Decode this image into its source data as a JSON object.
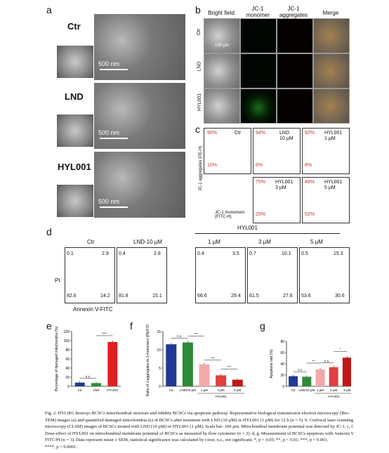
{
  "panel_labels": {
    "a": "a",
    "b": "b",
    "c": "c",
    "d": "d",
    "e": "e",
    "f": "f",
    "g": "g"
  },
  "panel_a": {
    "rows": [
      "Ctr",
      "LND",
      "HYL001"
    ],
    "scale": "500 nm"
  },
  "panel_b": {
    "headers": [
      "Bright field",
      "JC-1 monomer",
      "JC-1 aggregates",
      "Merge"
    ],
    "rows": [
      "Ctr",
      "LND",
      "HYL001"
    ],
    "scale": "100 µm"
  },
  "panel_c": {
    "plots": [
      {
        "label": "Ctr",
        "upper": "90%",
        "lower": "10%"
      },
      {
        "label": "LND\n10 µM",
        "upper": "94%",
        "lower": "6%"
      },
      {
        "label": "HYL001\n1 µM",
        "upper": "92%",
        "lower": "8%"
      },
      {
        "label": "HYL001\n3 µM",
        "upper": "75%",
        "lower": "25%"
      },
      {
        "label": "HYL001\n5 µM",
        "upper": "48%",
        "lower": "52%"
      }
    ],
    "ylabel": "JC-1 aggregates (PE-H)",
    "xlabel": "JC-1 monomers (FITC-H)"
  },
  "panel_d": {
    "group": "HYL001",
    "titles": [
      "Ctr",
      "LND-10 µM",
      "1 µM",
      "3 µM",
      "5 µM"
    ],
    "plots": [
      {
        "q2": "0.1",
        "q1": "2.9",
        "q3": "82.6",
        "q4": "14.2"
      },
      {
        "q2": "0.4",
        "q1": "2.8",
        "q3": "81.8",
        "q4": "15.1"
      },
      {
        "q2": "0.4",
        "q1": "3.5",
        "q3": "66.6",
        "q4": "29.4"
      },
      {
        "q2": "0.7",
        "q1": "10.1",
        "q3": "61.5",
        "q4": "27.6"
      },
      {
        "q2": "0.5",
        "q1": "15.3",
        "q3": "53.6",
        "q4": "30.6"
      }
    ],
    "ylabel": "PI",
    "xlabel": "Annexin V-FITC"
  },
  "chart_data": [
    {
      "type": "bar",
      "categories": [
        "Ctr",
        "LND",
        "HYL001"
      ],
      "values": [
        8,
        7,
        97
      ],
      "ylabel": "Percentage of damaged mitochondria (%)",
      "ylim": [
        0,
        120
      ],
      "yticks": [
        "0",
        "20",
        "40",
        "60",
        "80",
        "100",
        "120"
      ],
      "colors": [
        "#1f3a93",
        "#2e8b3a",
        "#e02020"
      ],
      "sig": [
        "n.s.",
        "****"
      ]
    },
    {
      "type": "bar",
      "categories": [
        "Ctr",
        "LND/10 µM",
        "1 µM",
        "3 µM",
        "5 µM"
      ],
      "values": [
        11.5,
        12,
        6,
        3,
        1.8
      ],
      "ylabel": "Ratio of J-aggregates to J-monomers (PE/FITC)",
      "ylim": [
        0,
        15
      ],
      "yticks": [
        "0",
        "5",
        "10",
        "15"
      ],
      "colors": [
        "#1f3a93",
        "#2e8b3a",
        "#f4a9a9",
        "#e04040",
        "#c01818"
      ],
      "group": "HYL001",
      "sig": [
        "n.s.",
        "***",
        "***",
        "***"
      ]
    },
    {
      "type": "bar",
      "categories": [
        "Ctr",
        "LND/10 µM",
        "1 µM",
        "3 µM",
        "5 µM"
      ],
      "values": [
        18,
        17,
        30,
        34,
        51
      ],
      "ylabel": "Apoptosis rate (%)",
      "ylim": [
        0,
        80
      ],
      "yticks": [
        "0",
        "20",
        "40",
        "60",
        "80"
      ],
      "colors": [
        "#1f3a93",
        "#2e8b3a",
        "#f4a9a9",
        "#e04040",
        "#c01818"
      ],
      "group": "HYL001",
      "sig": [
        "n.s.",
        "**",
        "n.s.",
        "*"
      ]
    }
  ],
  "caption": {
    "lines": [
      "Fig. 2.  HYL001 destroys BCSCs mitochondrial structure and inhibits BCSCs via apoptosis pathway. Representative biological transmission electron microscopy (Bio-",
      "TEM) images (a) and quantified damaged mitochondria (e) of BCSCs after treatment with LND (10 µM) or HYL001 (1 µM) for 12 h (n = 5). b. Confocal laser scanning",
      "microscopy (CLSM) images of BCSCs treated with LND (10 µM) or HYL001 (1 µM). Scale bar: 100 µm. Mitochondrial membrane potential was detected by JC-1. c, f.",
      "Dose-effect of HYL001 on mitochondrial membrane potential of BCSCs as measured by flow cytometer (n = 3). d, g. Measurement of BCSCs apoptosis with Annexin V",
      "FITC/PI (n = 3). Data represent mean ± SEM, statistical significance was calculated by t-test; n.s., not significant; *, p < 0.05; **, p < 0.01; ***, p < 0.001;",
      "****, p < 0.0001."
    ]
  }
}
